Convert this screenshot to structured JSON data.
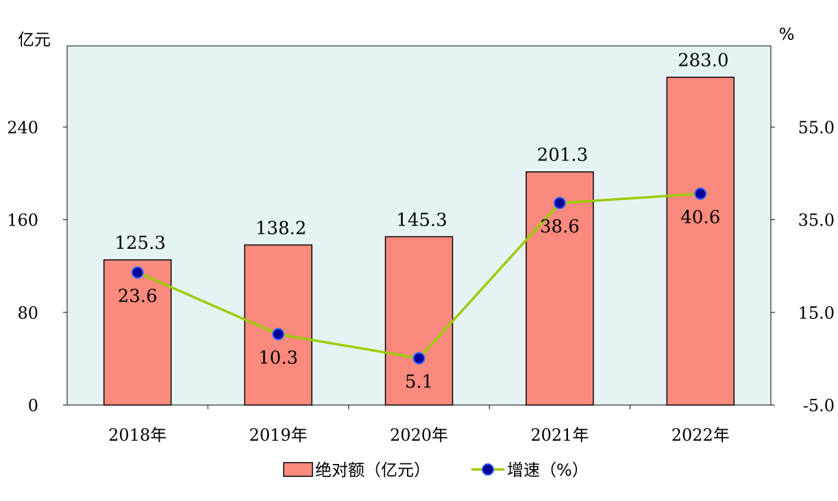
{
  "chart_data": {
    "type": "bar",
    "categories": [
      "2018年",
      "2019年",
      "2020年",
      "2021年",
      "2022年"
    ],
    "left_axis": {
      "unit": "亿元",
      "ylim": [
        0,
        310
      ],
      "ticks": [
        0,
        80,
        160,
        240
      ]
    },
    "right_axis": {
      "unit": "%",
      "ylim": [
        -5.0,
        72.5
      ],
      "ticks": [
        -5.0,
        15.0,
        35.0,
        55.0
      ],
      "tick_labels": [
        "-5.0",
        "15.0",
        "35.0",
        "55.0"
      ]
    },
    "series": [
      {
        "name": "绝对额（亿元）",
        "type": "bar",
        "axis": "left",
        "values": [
          125.3,
          138.2,
          145.3,
          201.3,
          283.0
        ],
        "labels": [
          "125.3",
          "138.2",
          "145.3",
          "201.3",
          "283.0"
        ]
      },
      {
        "name": "增速（%）",
        "type": "line",
        "axis": "right",
        "values": [
          23.6,
          10.3,
          5.1,
          38.6,
          40.6
        ],
        "labels": [
          "23.6",
          "10.3",
          "5.1",
          "38.6",
          "40.6"
        ]
      }
    ],
    "grid": false,
    "legend": "bottom-center",
    "colors": {
      "bar_fill": "#fa8a7d",
      "bar_stroke": "#000000",
      "line": "#99cc00",
      "marker_fill": "#000099",
      "marker_stroke": "#3366ff",
      "plot_bg": "#e6f3f5"
    }
  }
}
